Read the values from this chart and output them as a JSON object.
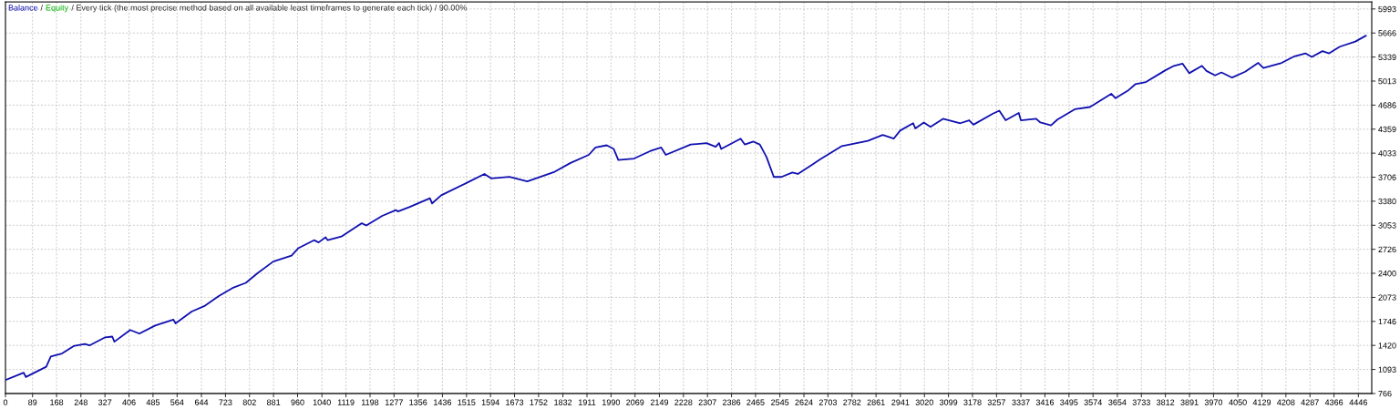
{
  "chart_data": {
    "type": "line",
    "annotations": [
      "/",
      "/ Every tick (the most precise method based on all available least timeframes to generate each tick) / 90.00%"
    ],
    "series": [
      {
        "name": "Balance",
        "color": "#1010b0",
        "x": [
          0,
          60,
          67,
          134,
          149,
          186,
          224,
          261,
          276,
          328,
          351,
          358,
          410,
          440,
          492,
          552,
          559,
          612,
          656,
          701,
          746,
          790,
          828,
          880,
          940,
          962,
          1014,
          1029,
          1052,
          1059,
          1104,
          1171,
          1186,
          1238,
          1283,
          1290,
          1327,
          1395,
          1402,
          1432,
          1521,
          1574,
          1596,
          1656,
          1715,
          1805,
          1857,
          1917,
          1939,
          1976,
          1999,
          2014,
          2066,
          2118,
          2155,
          2170,
          2252,
          2304,
          2334,
          2345,
          2352,
          2416,
          2430,
          2458,
          2479,
          2501,
          2525,
          2550,
          2586,
          2604,
          2649,
          2678,
          2749,
          2834,
          2883,
          2919,
          2940,
          2983,
          2990,
          3018,
          3040,
          3081,
          3138,
          3167,
          3181,
          3245,
          3266,
          3287,
          3330,
          3337,
          3387,
          3401,
          3436,
          3457,
          3514,
          3564,
          3634,
          3648,
          3691,
          3713,
          3748,
          3812,
          3840,
          3868,
          3890,
          3932,
          3947,
          3975,
          3996,
          4031,
          4074,
          4117,
          4134,
          4194,
          4236,
          4272,
          4293,
          4328,
          4350,
          4385,
          4436,
          4471
        ],
        "values": [
          950,
          1050,
          990,
          1130,
          1270,
          1310,
          1410,
          1440,
          1420,
          1530,
          1540,
          1470,
          1630,
          1580,
          1690,
          1770,
          1720,
          1880,
          1960,
          2090,
          2200,
          2270,
          2400,
          2560,
          2640,
          2740,
          2850,
          2820,
          2890,
          2850,
          2900,
          3080,
          3050,
          3180,
          3260,
          3240,
          3300,
          3420,
          3350,
          3460,
          3640,
          3750,
          3690,
          3710,
          3650,
          3780,
          3900,
          4010,
          4110,
          4140,
          4090,
          3940,
          3960,
          4060,
          4110,
          4010,
          4150,
          4170,
          4120,
          4170,
          4090,
          4230,
          4150,
          4190,
          4150,
          3980,
          3710,
          3710,
          3770,
          3750,
          3870,
          3950,
          4130,
          4200,
          4280,
          4230,
          4340,
          4440,
          4370,
          4450,
          4390,
          4500,
          4440,
          4480,
          4420,
          4570,
          4610,
          4480,
          4580,
          4480,
          4500,
          4450,
          4410,
          4490,
          4630,
          4660,
          4840,
          4780,
          4890,
          4970,
          5000,
          5160,
          5220,
          5250,
          5120,
          5220,
          5150,
          5090,
          5130,
          5060,
          5140,
          5260,
          5190,
          5260,
          5350,
          5390,
          5340,
          5420,
          5390,
          5480,
          5550,
          5630
        ]
      },
      {
        "name": "Equity",
        "color": "#00b400"
      }
    ],
    "xlim": [
      0,
      4490
    ],
    "xticks": [
      0,
      89,
      168,
      248,
      327,
      406,
      485,
      564,
      644,
      723,
      802,
      881,
      960,
      1040,
      1119,
      1198,
      1277,
      1356,
      1436,
      1515,
      1594,
      1673,
      1752,
      1832,
      1911,
      1990,
      2069,
      2149,
      2228,
      2307,
      2386,
      2465,
      2545,
      2624,
      2703,
      2782,
      2861,
      2941,
      3020,
      3099,
      3178,
      3257,
      3337,
      3416,
      3495,
      3574,
      3654,
      3733,
      3812,
      3891,
      3970,
      4050,
      4129,
      4208,
      4287,
      4366,
      4446
    ],
    "ylim": [
      766,
      6090
    ],
    "yticks": [
      766,
      1093,
      1420,
      1746,
      2073,
      2400,
      2726,
      3053,
      3380,
      3706,
      4033,
      4359,
      4686,
      5013,
      5339,
      5666,
      5993
    ],
    "grid": true,
    "legend": "top left"
  }
}
